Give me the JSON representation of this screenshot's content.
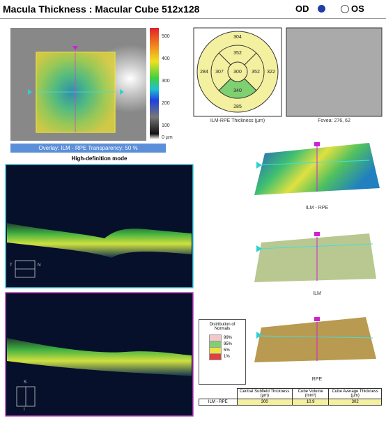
{
  "header": {
    "title": "Macula Thickness : Macular Cube 512x128",
    "od": "OD",
    "os": "OS"
  },
  "thickness_map": {
    "scale_labels": [
      "500",
      "400",
      "300",
      "200",
      "100",
      "0 µm"
    ],
    "overlay_caption": "Overlay: ILM - RPE  Transparency: 50 %",
    "mode": "High-definition mode"
  },
  "etdrs": {
    "outer_superior": "304",
    "inner_superior": "352",
    "outer_temporal": "284",
    "inner_temporal": "307",
    "center": "300",
    "inner_nasal": "352",
    "outer_nasal": "322",
    "inner_inferior": "340",
    "outer_inferior": "285",
    "caption": "ILM-RPE Thickness (µm)"
  },
  "fundus": {
    "caption": "Fovea: 276, 62"
  },
  "scans": {
    "scan1_labels": [
      "T",
      "N"
    ],
    "scan2_labels": [
      "S",
      "I"
    ]
  },
  "surfaces": [
    {
      "label": "ILM - RPE"
    },
    {
      "label": "ILM"
    },
    {
      "label": "RPE"
    }
  ],
  "legend": {
    "title": "Distribution of Normals",
    "items": [
      "99%",
      "95%",
      "5%",
      "1%"
    ]
  },
  "table": {
    "headers": [
      "Central Subfield Thickness (µm)",
      "Cube Volume (mm³)",
      "Cube Average Thickness (µm)"
    ],
    "rows": [
      [
        "ILM - RPE",
        "300",
        "10.9",
        "302"
      ]
    ]
  }
}
